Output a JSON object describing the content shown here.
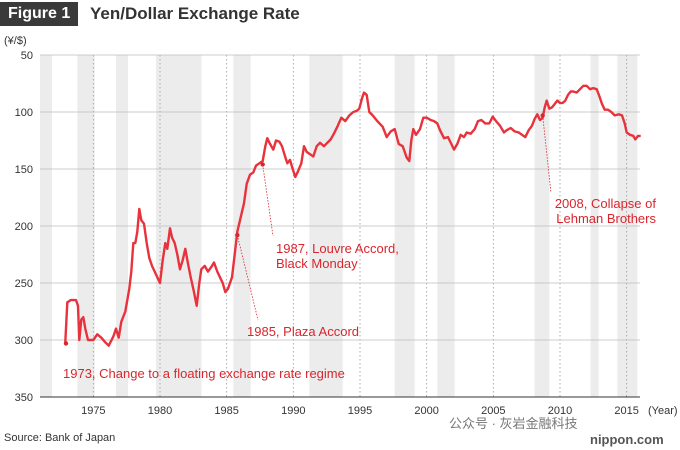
{
  "header": {
    "badge": "Figure 1",
    "title": "Yen/Dollar Exchange Rate"
  },
  "footer": {
    "source": "Source: Bank of Japan",
    "watermark": "公众号 · 灰岩金融科技",
    "site": "nippon.com"
  },
  "chart_data": {
    "type": "line",
    "title": "Yen/Dollar Exchange Rate",
    "ylabel": "(¥/$)",
    "xlabel": "(Year)",
    "xlim": [
      1971,
      2016
    ],
    "ylim": [
      350,
      50
    ],
    "y_inverted": true,
    "y_ticks": [
      50,
      100,
      150,
      200,
      250,
      300,
      350
    ],
    "x_ticks": [
      1975,
      1980,
      1985,
      1990,
      1995,
      2000,
      2005,
      2010,
      2015
    ],
    "x_tick_labels": [
      "1975",
      "1980",
      "1985",
      "1990",
      "1995",
      "2000",
      "2005",
      "2010",
      "2015"
    ],
    "grid": "horizontal lines at y ticks; dotted vertical lines at x ticks",
    "line_color": "#e8323c",
    "recession_band_color": "#ececec",
    "recession_bands": [
      [
        1971.0,
        1971.9
      ],
      [
        1973.8,
        1975.1
      ],
      [
        1976.7,
        1977.6
      ],
      [
        1979.7,
        1983.1
      ],
      [
        1985.5,
        1986.8
      ],
      [
        1991.2,
        1993.7
      ],
      [
        1997.6,
        1999.1
      ],
      [
        2000.8,
        2002.1
      ],
      [
        2008.1,
        2009.2
      ],
      [
        2012.3,
        2012.9
      ],
      [
        2014.3,
        2015.8
      ]
    ],
    "series": [
      {
        "values": [
          [
            1972.9,
            302
          ],
          [
            1973.05,
            267
          ],
          [
            1973.3,
            265
          ],
          [
            1973.7,
            265
          ],
          [
            1973.85,
            270
          ],
          [
            1973.95,
            300
          ],
          [
            1974.1,
            282
          ],
          [
            1974.25,
            280
          ],
          [
            1974.4,
            290
          ],
          [
            1974.6,
            300
          ],
          [
            1975.0,
            300
          ],
          [
            1975.3,
            295
          ],
          [
            1975.6,
            298
          ],
          [
            1975.9,
            302
          ],
          [
            1976.15,
            305
          ],
          [
            1976.5,
            297
          ],
          [
            1976.7,
            290
          ],
          [
            1976.9,
            298
          ],
          [
            1977.1,
            284
          ],
          [
            1977.4,
            275
          ],
          [
            1977.7,
            255
          ],
          [
            1977.85,
            240
          ],
          [
            1978.0,
            215
          ],
          [
            1978.15,
            215
          ],
          [
            1978.3,
            205
          ],
          [
            1978.45,
            185
          ],
          [
            1978.6,
            195
          ],
          [
            1978.8,
            198
          ],
          [
            1979.0,
            215
          ],
          [
            1979.2,
            228
          ],
          [
            1979.4,
            235
          ],
          [
            1979.6,
            240
          ],
          [
            1979.8,
            245
          ],
          [
            1980.0,
            250
          ],
          [
            1980.2,
            230
          ],
          [
            1980.4,
            215
          ],
          [
            1980.55,
            220
          ],
          [
            1980.75,
            202
          ],
          [
            1980.9,
            210
          ],
          [
            1981.1,
            215
          ],
          [
            1981.3,
            225
          ],
          [
            1981.5,
            238
          ],
          [
            1981.7,
            230
          ],
          [
            1981.9,
            220
          ],
          [
            1982.1,
            233
          ],
          [
            1982.3,
            245
          ],
          [
            1982.55,
            258
          ],
          [
            1982.75,
            270
          ],
          [
            1982.95,
            250
          ],
          [
            1983.1,
            238
          ],
          [
            1983.35,
            235
          ],
          [
            1983.6,
            240
          ],
          [
            1983.85,
            236
          ],
          [
            1984.05,
            232
          ],
          [
            1984.3,
            240
          ],
          [
            1984.5,
            245
          ],
          [
            1984.7,
            250
          ],
          [
            1984.9,
            258
          ],
          [
            1985.1,
            255
          ],
          [
            1985.4,
            245
          ],
          [
            1985.6,
            225
          ],
          [
            1985.8,
            205
          ],
          [
            1986.0,
            195
          ],
          [
            1986.3,
            180
          ],
          [
            1986.5,
            163
          ],
          [
            1986.75,
            155
          ],
          [
            1987.0,
            153
          ],
          [
            1987.2,
            147
          ],
          [
            1987.45,
            145
          ],
          [
            1987.7,
            143
          ],
          [
            1987.9,
            130
          ],
          [
            1988.05,
            123
          ],
          [
            1988.25,
            128
          ],
          [
            1988.5,
            133
          ],
          [
            1988.7,
            125
          ],
          [
            1988.95,
            126
          ],
          [
            1989.15,
            130
          ],
          [
            1989.35,
            138
          ],
          [
            1989.55,
            145
          ],
          [
            1989.75,
            142
          ],
          [
            1989.95,
            150
          ],
          [
            1990.15,
            157
          ],
          [
            1990.35,
            152
          ],
          [
            1990.6,
            145
          ],
          [
            1990.8,
            130
          ],
          [
            1991.0,
            135
          ],
          [
            1991.25,
            137
          ],
          [
            1991.5,
            139
          ],
          [
            1991.75,
            130
          ],
          [
            1992.0,
            127
          ],
          [
            1992.3,
            130
          ],
          [
            1992.55,
            127
          ],
          [
            1992.8,
            124
          ],
          [
            1993.0,
            120
          ],
          [
            1993.3,
            113
          ],
          [
            1993.6,
            105
          ],
          [
            1993.9,
            108
          ],
          [
            1994.2,
            103
          ],
          [
            1994.5,
            100
          ],
          [
            1994.75,
            99
          ],
          [
            1994.95,
            97
          ],
          [
            1995.15,
            88
          ],
          [
            1995.3,
            83
          ],
          [
            1995.5,
            85
          ],
          [
            1995.7,
            100
          ],
          [
            1995.95,
            103
          ],
          [
            1996.3,
            108
          ],
          [
            1996.7,
            113
          ],
          [
            1997.0,
            122
          ],
          [
            1997.3,
            117
          ],
          [
            1997.6,
            115
          ],
          [
            1997.9,
            128
          ],
          [
            1998.2,
            130
          ],
          [
            1998.5,
            140
          ],
          [
            1998.7,
            143
          ],
          [
            1998.85,
            125
          ],
          [
            1999.0,
            115
          ],
          [
            1999.2,
            120
          ],
          [
            1999.5,
            115
          ],
          [
            1999.75,
            105
          ],
          [
            2000.0,
            105
          ],
          [
            2000.3,
            107
          ],
          [
            2000.55,
            108
          ],
          [
            2000.8,
            110
          ],
          [
            2001.0,
            116
          ],
          [
            2001.3,
            123
          ],
          [
            2001.6,
            122
          ],
          [
            2001.85,
            128
          ],
          [
            2002.05,
            133
          ],
          [
            2002.3,
            128
          ],
          [
            2002.55,
            120
          ],
          [
            2002.8,
            122
          ],
          [
            2003.0,
            118
          ],
          [
            2003.3,
            119
          ],
          [
            2003.6,
            115
          ],
          [
            2003.85,
            108
          ],
          [
            2004.1,
            107
          ],
          [
            2004.4,
            110
          ],
          [
            2004.7,
            110
          ],
          [
            2004.95,
            104
          ],
          [
            2005.2,
            108
          ],
          [
            2005.5,
            112
          ],
          [
            2005.8,
            118
          ],
          [
            2006.0,
            116
          ],
          [
            2006.3,
            114
          ],
          [
            2006.6,
            117
          ],
          [
            2006.9,
            118
          ],
          [
            2007.15,
            120
          ],
          [
            2007.4,
            122
          ],
          [
            2007.65,
            116
          ],
          [
            2007.9,
            112
          ],
          [
            2008.1,
            106
          ],
          [
            2008.3,
            102
          ],
          [
            2008.5,
            107
          ],
          [
            2008.7,
            105
          ],
          [
            2008.85,
            96
          ],
          [
            2009.0,
            90
          ],
          [
            2009.2,
            97
          ],
          [
            2009.4,
            96
          ],
          [
            2009.6,
            93
          ],
          [
            2009.8,
            90
          ],
          [
            2010.0,
            92
          ],
          [
            2010.2,
            92
          ],
          [
            2010.4,
            90
          ],
          [
            2010.6,
            85
          ],
          [
            2010.8,
            82
          ],
          [
            2011.0,
            82
          ],
          [
            2011.25,
            83
          ],
          [
            2011.5,
            80
          ],
          [
            2011.75,
            77
          ],
          [
            2012.0,
            77
          ],
          [
            2012.25,
            80
          ],
          [
            2012.5,
            79
          ],
          [
            2012.75,
            80
          ],
          [
            2012.95,
            86
          ],
          [
            2013.15,
            93
          ],
          [
            2013.35,
            98
          ],
          [
            2013.6,
            98
          ],
          [
            2013.85,
            100
          ],
          [
            2014.1,
            103
          ],
          [
            2014.4,
            102
          ],
          [
            2014.65,
            103
          ],
          [
            2014.85,
            110
          ],
          [
            2015.0,
            118
          ],
          [
            2015.25,
            120
          ],
          [
            2015.5,
            121
          ],
          [
            2015.65,
            124
          ],
          [
            2015.85,
            121
          ],
          [
            2016.05,
            121
          ]
        ]
      }
    ],
    "annotations": [
      {
        "id": "float",
        "x": 1972.95,
        "y": 303,
        "lines": [
          "1973, Change to a floating exchange rate regime"
        ]
      },
      {
        "id": "plaza",
        "x": 1985.8,
        "y": 208,
        "lines": [
          "1985, Plaza Accord"
        ]
      },
      {
        "id": "louvre",
        "x": 1987.7,
        "y": 146,
        "lines": [
          "1987, Louvre Accord,",
          "Black Monday"
        ]
      },
      {
        "id": "lehman",
        "x": 2008.7,
        "y": 103,
        "lines": [
          "2008, Collapse of",
          "Lehman Brothers"
        ]
      }
    ]
  }
}
